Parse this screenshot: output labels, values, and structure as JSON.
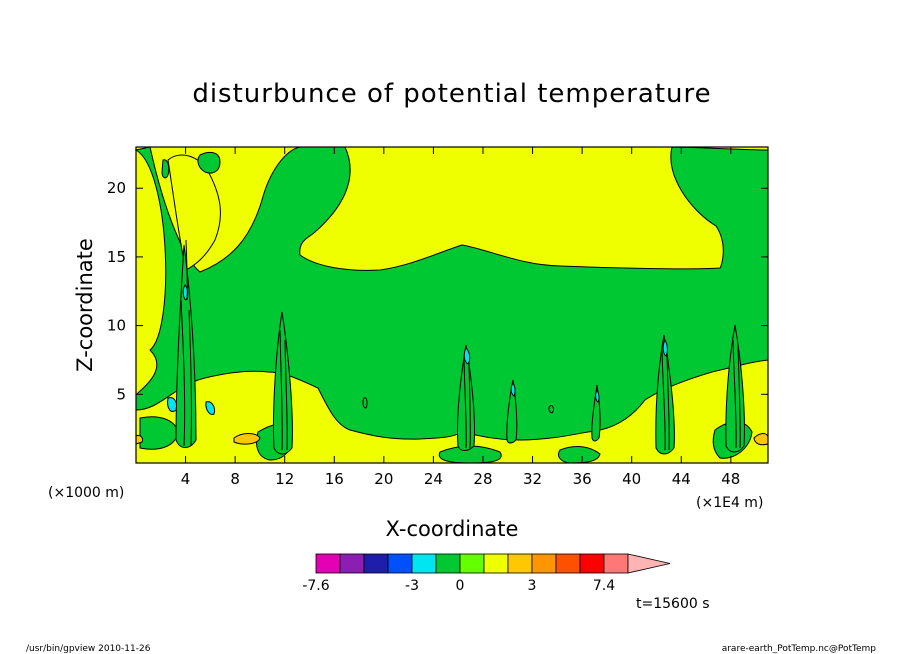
{
  "chart_data": {
    "type": "heatmap",
    "title": "disturbunce of potential temperature",
    "xlabel": "X-coordinate",
    "ylabel": "Z-coordinate",
    "x_unit": "(×1E4 m)",
    "y_unit": "(×1000 m)",
    "xlim": [
      0,
      51
    ],
    "ylim": [
      0,
      23
    ],
    "x_ticks": [
      "4",
      "8",
      "12",
      "16",
      "20",
      "24",
      "28",
      "32",
      "36",
      "40",
      "44",
      "48"
    ],
    "x_tick_values": [
      4,
      8,
      12,
      16,
      20,
      24,
      28,
      32,
      36,
      40,
      44,
      48
    ],
    "y_ticks": [
      "5",
      "10",
      "15",
      "20"
    ],
    "y_tick_values": [
      5,
      10,
      15,
      20
    ],
    "time_label": "t=15600 s",
    "footer_left": "/usr/bin/gpview   2010-11-26",
    "footer_right": "arare-earth_PotTemp.nc@PotTemp",
    "grid": false,
    "colorbar": {
      "tick_labels": [
        "-7.6",
        "-3",
        "0",
        "3",
        "7.4"
      ],
      "tick_values": [
        -7.6,
        -3,
        0,
        3,
        7.4
      ],
      "colors": [
        "#e600b4",
        "#8c1eb4",
        "#1e1eaa",
        "#0050ff",
        "#00e6f0",
        "#00c832",
        "#64ff00",
        "#f0ff00",
        "#ffc800",
        "#ff9600",
        "#ff5000",
        "#ff0000",
        "#ff7878",
        "#ffb4b4"
      ],
      "boundaries": [
        -7.6,
        -5.8,
        -5,
        -4,
        -3,
        -1.5,
        0,
        1.5,
        2.5,
        3,
        4,
        5,
        7.4,
        9
      ]
    },
    "colors": {
      "background_level": "#f0ff00",
      "near_zero_negative": "#00c832",
      "positive_small": "#ffc800",
      "negative_medium": "#00e6f0"
    }
  }
}
